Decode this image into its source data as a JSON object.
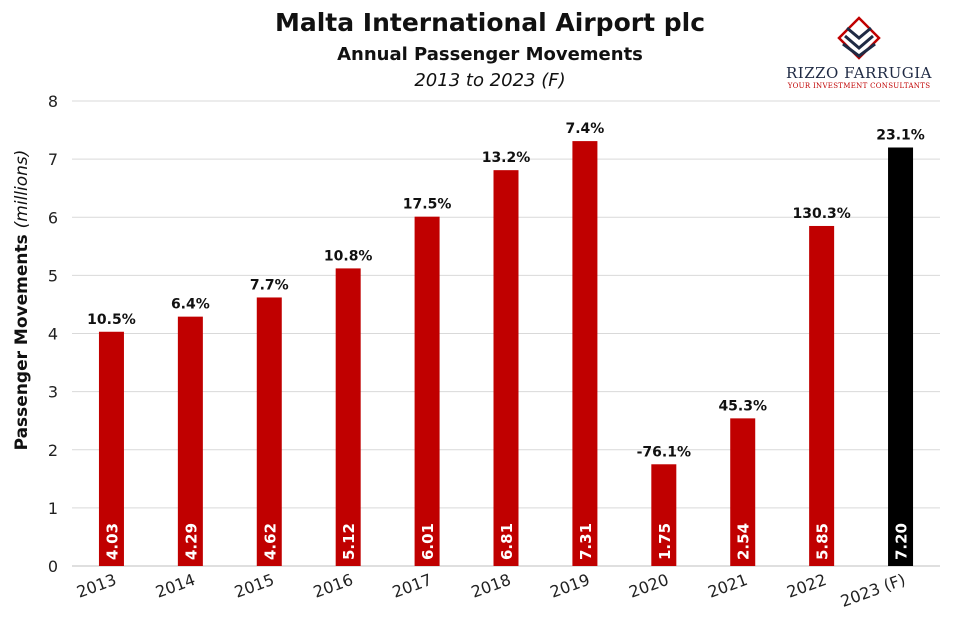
{
  "logo": {
    "name": "RIZZO FARRUGIA",
    "tagline": "YOUR INVESTMENT CONSULTANTS"
  },
  "chart_data": {
    "type": "bar",
    "title": "Malta International Airport plc",
    "subtitle": "Annual Passenger Movements",
    "period": "2013 to 2023 (F)",
    "ylabel": "Passenger Movements",
    "ylabel_unit": "(millions)",
    "ylim": [
      0,
      8
    ],
    "yticks": [
      0,
      1,
      2,
      3,
      4,
      5,
      6,
      7,
      8
    ],
    "grid": true,
    "categories": [
      "2013",
      "2014",
      "2015",
      "2016",
      "2017",
      "2018",
      "2019",
      "2020",
      "2021",
      "2022",
      "2023 (F)"
    ],
    "values": [
      4.03,
      4.29,
      4.62,
      5.12,
      6.01,
      6.81,
      7.31,
      1.75,
      2.54,
      5.85,
      7.2
    ],
    "value_labels": [
      "4.03",
      "4.29",
      "4.62",
      "5.12",
      "6.01",
      "6.81",
      "7.31",
      "1.75",
      "2.54",
      "5.85",
      "7.20"
    ],
    "growth_labels": [
      "10.5%",
      "6.4%",
      "7.7%",
      "10.8%",
      "17.5%",
      "13.2%",
      "7.4%",
      "-76.1%",
      "45.3%",
      "130.3%",
      "23.1%"
    ],
    "colors": {
      "actual": "#c00000",
      "forecast": "#000000",
      "grid": "#d9d9d9"
    },
    "forecast_index": 10
  }
}
